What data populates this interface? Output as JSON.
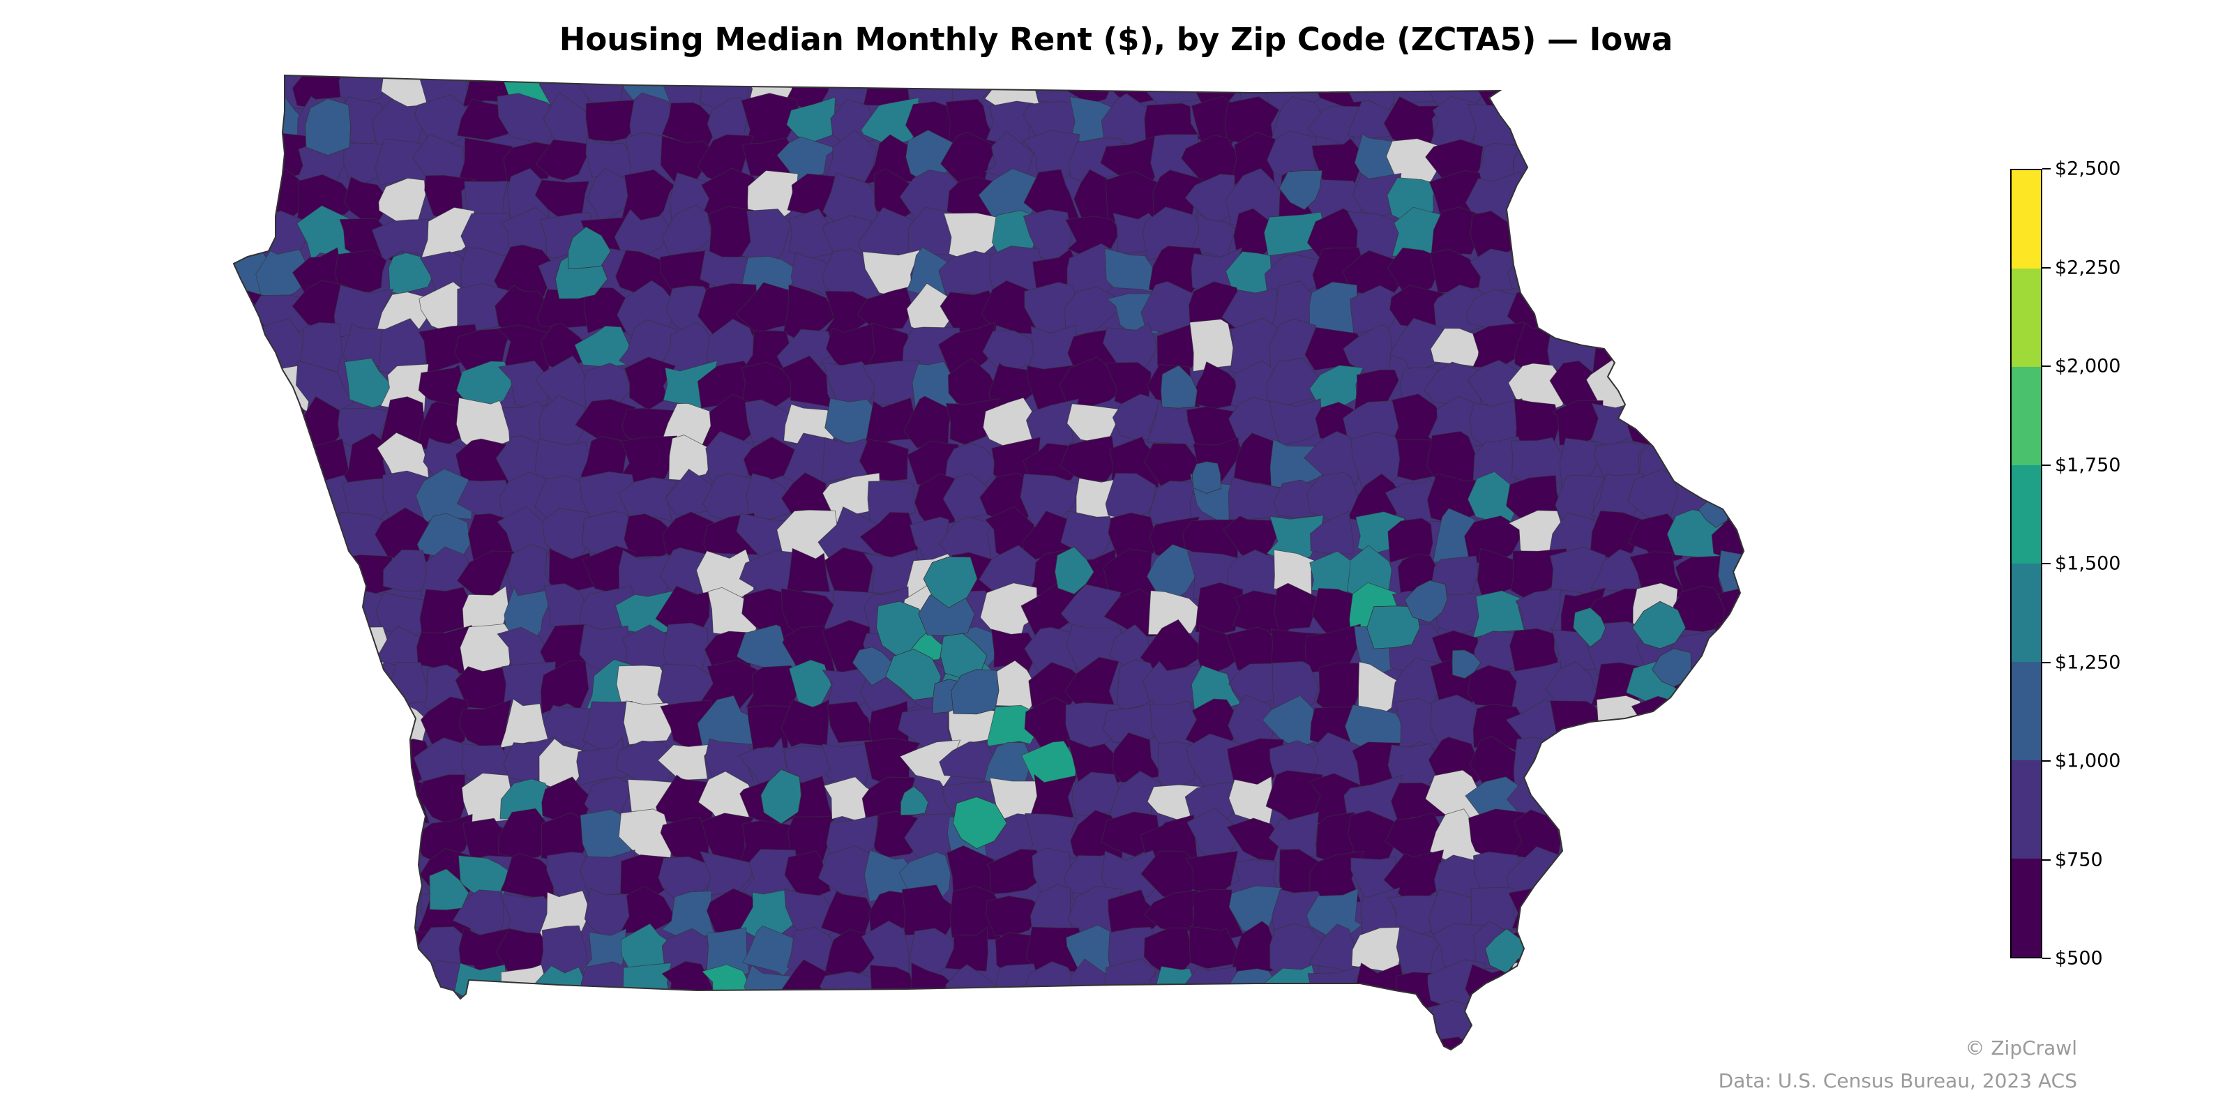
{
  "title": "Housing Median Monthly Rent ($), by Zip Code (ZCTA5) — Iowa",
  "map": {
    "region": "Iowa",
    "unit": "ZCTA5",
    "no_data_color": "#d3d3d3",
    "border_color": "#333333"
  },
  "legend": {
    "type": "colorbar",
    "placement": "right",
    "bins": [
      {
        "min": 500,
        "max": 750,
        "color": "#440154"
      },
      {
        "min": 750,
        "max": 1000,
        "color": "#46327e"
      },
      {
        "min": 1000,
        "max": 1250,
        "color": "#365c8d"
      },
      {
        "min": 1250,
        "max": 1500,
        "color": "#277f8e"
      },
      {
        "min": 1500,
        "max": 1750,
        "color": "#1fa187"
      },
      {
        "min": 1750,
        "max": 2000,
        "color": "#4ac16d"
      },
      {
        "min": 2000,
        "max": 2250,
        "color": "#a0da39"
      },
      {
        "min": 2250,
        "max": 2500,
        "color": "#fde725"
      }
    ],
    "tick_labels": [
      "$500",
      "$750",
      "$1,000",
      "$1,250",
      "$1,500",
      "$1,750",
      "$2,000",
      "$2,250",
      "$2,500"
    ]
  },
  "credits": {
    "brand": "© ZipCrawl",
    "source": "Data: U.S. Census Bureau, 2023 ACS"
  }
}
